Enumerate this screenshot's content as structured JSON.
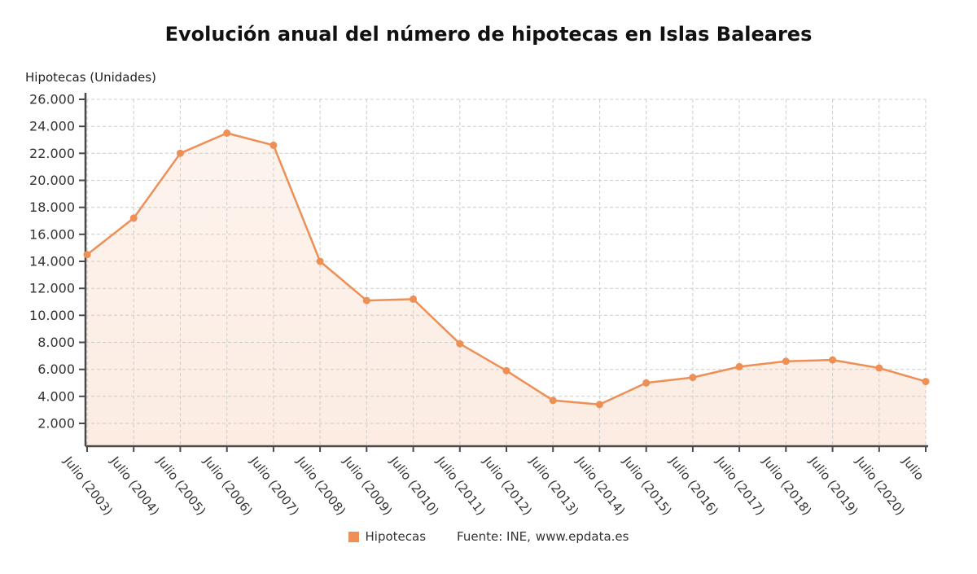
{
  "chart_data": {
    "type": "line",
    "title": "Evolución anual del número de hipotecas en Islas Baleares",
    "y_axis_title": "Hipotecas (Unidades)",
    "categories": [
      "Julio (2003)",
      "Julio (2004)",
      "Julio (2005)",
      "Julio (2006)",
      "Julio (2007)",
      "Julio (2008)",
      "Julio (2009)",
      "Julio (2010)",
      "Julio (2011)",
      "Julio (2012)",
      "Julio (2013)",
      "Julio (2014)",
      "Julio (2015)",
      "Julio (2016)",
      "Julio (2017)",
      "Julio (2018)",
      "Julio (2019)",
      "Julio (2020)",
      "Julio"
    ],
    "series": [
      {
        "name": "Hipotecas",
        "values": [
          14500,
          17200,
          22000,
          23500,
          22600,
          14000,
          11100,
          11200,
          7900,
          5900,
          3700,
          3400,
          5000,
          5400,
          6200,
          6600,
          6700,
          6100,
          5100
        ]
      }
    ],
    "ylim": [
      2000,
      26000
    ],
    "y_ticks": [
      {
        "value": 2000,
        "label": "2.000"
      },
      {
        "value": 4000,
        "label": "4.000"
      },
      {
        "value": 6000,
        "label": "6.000"
      },
      {
        "value": 8000,
        "label": "8.000"
      },
      {
        "value": 10000,
        "label": "10.000"
      },
      {
        "value": 12000,
        "label": "12.000"
      },
      {
        "value": 14000,
        "label": "14.000"
      },
      {
        "value": 16000,
        "label": "16.000"
      },
      {
        "value": 18000,
        "label": "18.000"
      },
      {
        "value": 20000,
        "label": "20.000"
      },
      {
        "value": 22000,
        "label": "22.000"
      },
      {
        "value": 24000,
        "label": "24.000"
      },
      {
        "value": 26000,
        "label": "26.000"
      }
    ],
    "grid": true,
    "grid_style": "dashed",
    "legend_position": "bottom",
    "legend_label": "Hipotecas",
    "source_text": "Fuente: INE,",
    "source_link": "www.epdata.es",
    "colors": {
      "line": "#ee8f55",
      "grid": "#cccccc",
      "axis": "#4a4a4a",
      "text": "#333333"
    }
  }
}
